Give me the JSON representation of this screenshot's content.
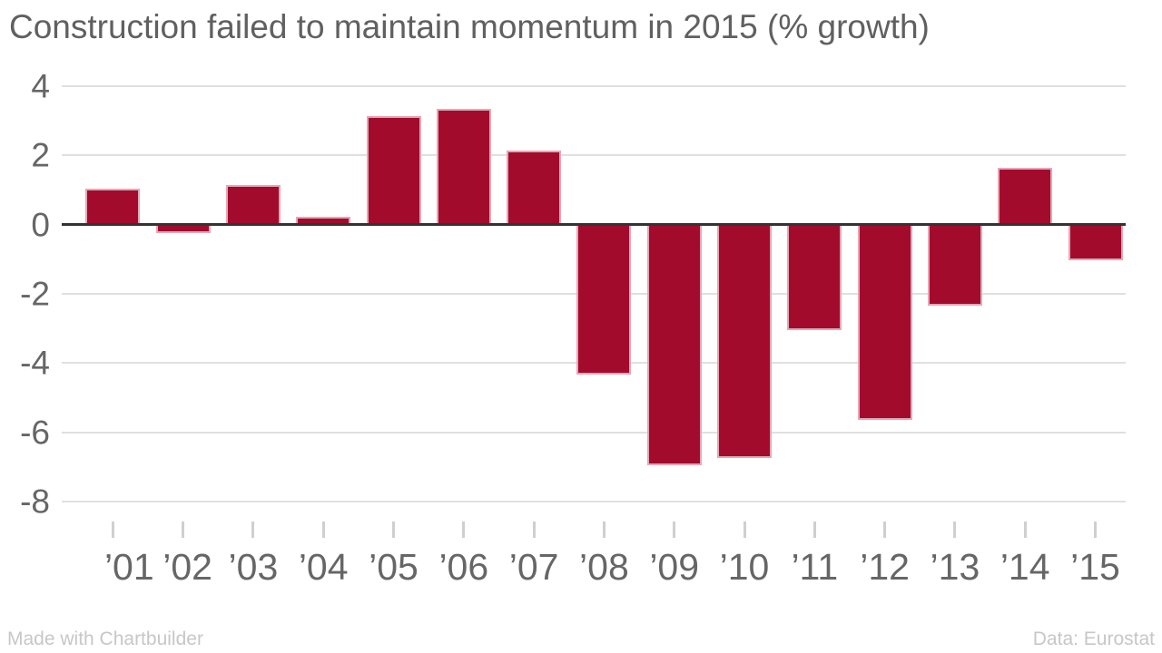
{
  "title": "Construction failed to maintain momentum in 2015 (% growth)",
  "footer": {
    "left": "Made with Chartbuilder",
    "right": "Data: Eurostat"
  },
  "colors": {
    "bar": "#a30b2d",
    "bar_stroke": "#e3a7b6",
    "grid": "#e0e0e0",
    "zero_line": "#333333",
    "tick": "#cfcfcf",
    "axis_text": "#666666",
    "title_text": "#606060",
    "footer_text": "#c7c7c7",
    "background": "#ffffff"
  },
  "chart_data": {
    "type": "bar",
    "title": "Construction failed to maintain momentum in 2015 (% growth)",
    "categories": [
      "’01",
      "’02",
      "’03",
      "’04",
      "’05",
      "’06",
      "’07",
      "’08",
      "’09",
      "’10",
      "’11",
      "’12",
      "’13",
      "’14",
      "’15"
    ],
    "values": [
      1.0,
      -0.2,
      1.1,
      0.2,
      3.1,
      3.3,
      2.1,
      -4.3,
      -6.9,
      -6.7,
      -3.0,
      -5.6,
      -2.3,
      1.6,
      -1.0
    ],
    "xlabel": "",
    "ylabel": "",
    "ylim": [
      -8,
      4
    ],
    "yticks": [
      4,
      2,
      0,
      -2,
      -4,
      -6,
      -8
    ],
    "grid": true,
    "legend_position": "none",
    "credit": "Made with Chartbuilder",
    "source": "Data: Eurostat"
  }
}
